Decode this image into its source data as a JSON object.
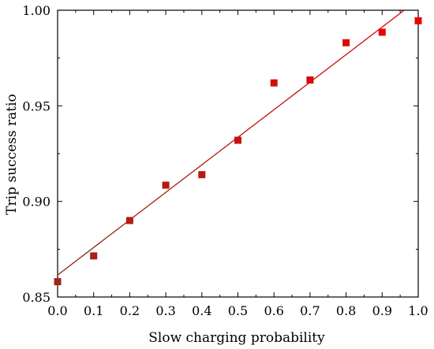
{
  "chart_data": {
    "type": "scatter",
    "xlabel": "Slow charging probability",
    "ylabel": "Trip success ratio",
    "xlim": [
      0.0,
      1.0
    ],
    "ylim": [
      0.85,
      1.0
    ],
    "x_ticks": [
      "0.0",
      "0.1",
      "0.2",
      "0.3",
      "0.4",
      "0.5",
      "0.6",
      "0.7",
      "0.8",
      "0.9",
      "1.0"
    ],
    "y_ticks": [
      "0.85",
      "0.90",
      "0.95",
      "1.00"
    ],
    "grid": false,
    "legend": "none",
    "points": [
      {
        "x": 0.0,
        "y": 0.858
      },
      {
        "x": 0.1,
        "y": 0.8715
      },
      {
        "x": 0.2,
        "y": 0.89
      },
      {
        "x": 0.3,
        "y": 0.9085
      },
      {
        "x": 0.4,
        "y": 0.914
      },
      {
        "x": 0.5,
        "y": 0.932
      },
      {
        "x": 0.6,
        "y": 0.962
      },
      {
        "x": 0.7,
        "y": 0.9635
      },
      {
        "x": 0.8,
        "y": 0.983
      },
      {
        "x": 0.9,
        "y": 0.9885
      },
      {
        "x": 1.0,
        "y": 0.9945
      }
    ],
    "fit_line": {
      "x0": 0.0,
      "y0": 0.8615,
      "x1": 0.961,
      "y1": 1.0
    },
    "colors": {
      "points_start": "#a0241a",
      "points_end": "#ee0000",
      "line_start": "#8b2a1a",
      "line_end": "#e00000",
      "axis": "#000000"
    }
  }
}
